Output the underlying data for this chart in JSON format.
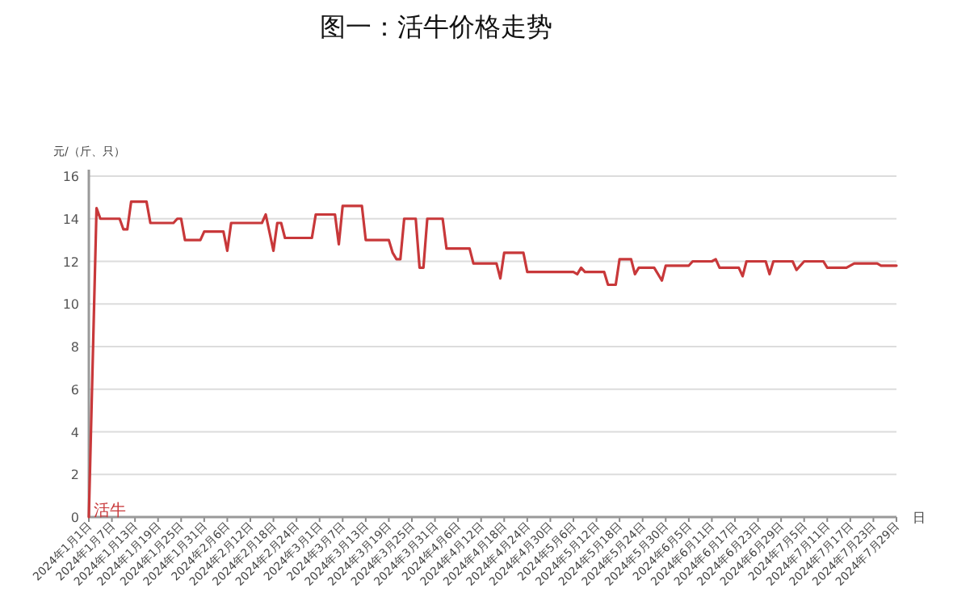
{
  "chart_data": {
    "type": "line",
    "title": "图一：活牛价格走势",
    "ylabel": "元/（斤、只）",
    "xlabel": "日",
    "xlim": [
      "2024-01-01",
      "2024-07-29"
    ],
    "ylim": [
      0,
      16
    ],
    "yticks": [
      0,
      2,
      4,
      6,
      8,
      10,
      12,
      14,
      16
    ],
    "xticks": [
      {
        "value": "2024-01-01",
        "label": "2024年1月1日"
      },
      {
        "value": "2024-01-07",
        "label": "2024年1月7日"
      },
      {
        "value": "2024-01-13",
        "label": "2024年1月13日"
      },
      {
        "value": "2024-01-19",
        "label": "2024年1月19日"
      },
      {
        "value": "2024-01-25",
        "label": "2024年1月25日"
      },
      {
        "value": "2024-01-31",
        "label": "2024年1月31日"
      },
      {
        "value": "2024-02-06",
        "label": "2024年2月6日"
      },
      {
        "value": "2024-02-12",
        "label": "2024年2月12日"
      },
      {
        "value": "2024-02-18",
        "label": "2024年2月18日"
      },
      {
        "value": "2024-02-24",
        "label": "2024年2月24日"
      },
      {
        "value": "2024-03-01",
        "label": "2024年3月1日"
      },
      {
        "value": "2024-03-07",
        "label": "2024年3月7日"
      },
      {
        "value": "2024-03-13",
        "label": "2024年3月13日"
      },
      {
        "value": "2024-03-19",
        "label": "2024年3月19日"
      },
      {
        "value": "2024-03-25",
        "label": "2024年3月25日"
      },
      {
        "value": "2024-03-31",
        "label": "2024年3月31日"
      },
      {
        "value": "2024-04-06",
        "label": "2024年4月6日"
      },
      {
        "value": "2024-04-12",
        "label": "2024年4月12日"
      },
      {
        "value": "2024-04-18",
        "label": "2024年4月18日"
      },
      {
        "value": "2024-04-24",
        "label": "2024年4月24日"
      },
      {
        "value": "2024-04-30",
        "label": "2024年4月30日"
      },
      {
        "value": "2024-05-06",
        "label": "2024年5月6日"
      },
      {
        "value": "2024-05-12",
        "label": "2024年5月12日"
      },
      {
        "value": "2024-05-18",
        "label": "2024年5月18日"
      },
      {
        "value": "2024-05-24",
        "label": "2024年5月24日"
      },
      {
        "value": "2024-05-30",
        "label": "2024年5月30日"
      },
      {
        "value": "2024-06-05",
        "label": "2024年6月5日"
      },
      {
        "value": "2024-06-11",
        "label": "2024年6月11日"
      },
      {
        "value": "2024-06-17",
        "label": "2024年6月17日"
      },
      {
        "value": "2024-06-23",
        "label": "2024年6月23日"
      },
      {
        "value": "2024-06-29",
        "label": "2024年6月29日"
      },
      {
        "value": "2024-07-05",
        "label": "2024年7月5日"
      },
      {
        "value": "2024-07-11",
        "label": "2024年7月11日"
      },
      {
        "value": "2024-07-17",
        "label": "2024年7月17日"
      },
      {
        "value": "2024-07-23",
        "label": "2024年7月23日"
      },
      {
        "value": "2024-07-29",
        "label": "2024年7月29日"
      }
    ],
    "grid": "y",
    "legend": false,
    "marker": "none",
    "line_style": "solid",
    "x": [
      "2024-01-01",
      "2024-01-03",
      "2024-01-04",
      "2024-01-09",
      "2024-01-10",
      "2024-01-11",
      "2024-01-12",
      "2024-01-16",
      "2024-01-17",
      "2024-01-23",
      "2024-01-24",
      "2024-01-25",
      "2024-01-26",
      "2024-01-30",
      "2024-01-31",
      "2024-02-05",
      "2024-02-06",
      "2024-02-07",
      "2024-02-15",
      "2024-02-16",
      "2024-02-18",
      "2024-02-19",
      "2024-02-20",
      "2024-02-21",
      "2024-02-28",
      "2024-02-29",
      "2024-03-05",
      "2024-03-06",
      "2024-03-07",
      "2024-03-12",
      "2024-03-13",
      "2024-03-19",
      "2024-03-20",
      "2024-03-21",
      "2024-03-22",
      "2024-03-23",
      "2024-03-26",
      "2024-03-27",
      "2024-03-28",
      "2024-03-29",
      "2024-04-02",
      "2024-04-03",
      "2024-04-09",
      "2024-04-10",
      "2024-04-16",
      "2024-04-17",
      "2024-04-18",
      "2024-04-23",
      "2024-04-24",
      "2024-05-06",
      "2024-05-07",
      "2024-05-08",
      "2024-05-09",
      "2024-05-14",
      "2024-05-15",
      "2024-05-17",
      "2024-05-18",
      "2024-05-21",
      "2024-05-22",
      "2024-05-23",
      "2024-05-27",
      "2024-05-29",
      "2024-05-30",
      "2024-06-05",
      "2024-06-06",
      "2024-06-11",
      "2024-06-12",
      "2024-06-13",
      "2024-06-18",
      "2024-06-19",
      "2024-06-20",
      "2024-06-25",
      "2024-06-26",
      "2024-06-27",
      "2024-07-02",
      "2024-07-03",
      "2024-07-05",
      "2024-07-10",
      "2024-07-11",
      "2024-07-16",
      "2024-07-18",
      "2024-07-24",
      "2024-07-25",
      "2024-07-29"
    ],
    "series": [
      {
        "name": "活牛",
        "color": "#c8383a",
        "values": [
          0,
          14.5,
          14.0,
          14.0,
          13.5,
          13.5,
          14.8,
          14.8,
          13.8,
          13.8,
          14.0,
          14.0,
          13.0,
          13.0,
          13.4,
          13.4,
          12.5,
          13.8,
          13.8,
          14.2,
          12.5,
          13.8,
          13.8,
          13.1,
          13.1,
          14.2,
          14.2,
          12.8,
          14.6,
          14.6,
          13.0,
          13.0,
          12.4,
          12.1,
          12.1,
          14.0,
          14.0,
          11.7,
          11.7,
          14.0,
          14.0,
          12.6,
          12.6,
          11.9,
          11.9,
          11.2,
          12.4,
          12.4,
          11.5,
          11.5,
          11.4,
          11.7,
          11.5,
          11.5,
          10.9,
          10.9,
          12.1,
          12.1,
          11.4,
          11.7,
          11.7,
          11.1,
          11.8,
          11.8,
          12.0,
          12.0,
          12.1,
          11.7,
          11.7,
          11.3,
          12.0,
          12.0,
          11.4,
          12.0,
          12.0,
          11.6,
          12.0,
          12.0,
          11.7,
          11.7,
          11.9,
          11.9,
          11.8,
          11.8
        ]
      }
    ]
  }
}
